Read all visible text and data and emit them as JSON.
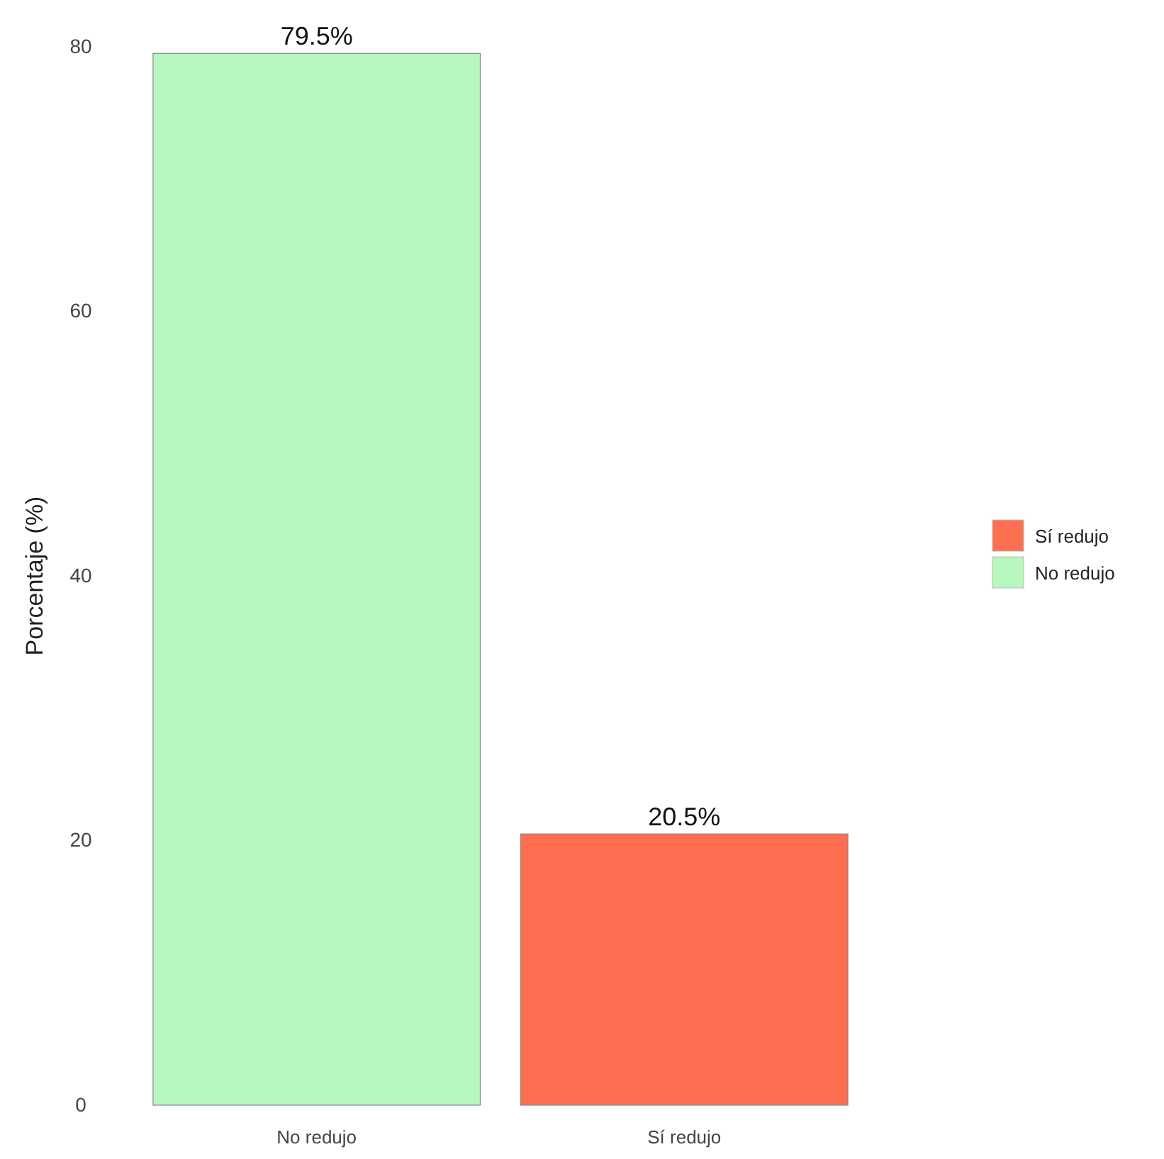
{
  "chart_data": {
    "type": "bar",
    "ylabel": "Porcentaje (%)",
    "categories": [
      "No redujo",
      "Sí redujo"
    ],
    "series": [
      {
        "name": "Sí redujo",
        "color": "#fe6e50",
        "values": [
          null,
          20.5
        ],
        "value_labels": [
          null,
          "20.5%"
        ]
      },
      {
        "name": "No redujo",
        "color": "#b7f7be",
        "values": [
          79.5,
          null
        ],
        "value_labels": [
          "79.5%",
          null
        ]
      }
    ],
    "ylim": [
      0,
      80
    ],
    "yticks": [
      0,
      20,
      40,
      60,
      80
    ],
    "grid": false,
    "legend": "right"
  }
}
